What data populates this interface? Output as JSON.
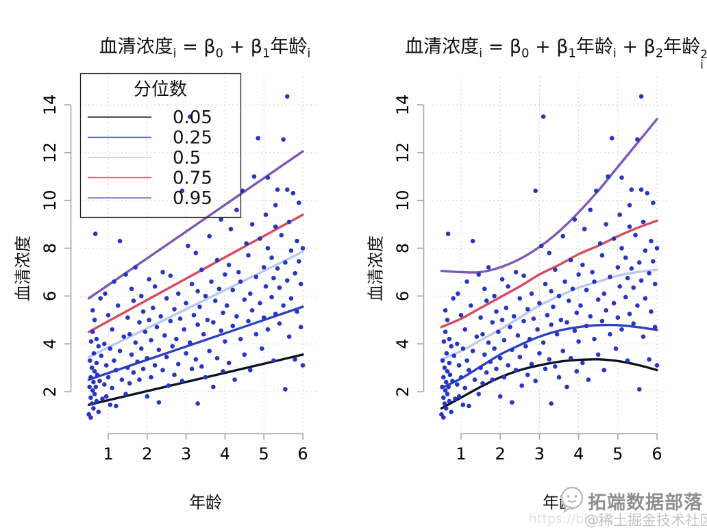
{
  "figure": {
    "background": "#ffffff",
    "watermark": {
      "brand": "拓端数据部落",
      "handle": "@稀土掘金技术社区",
      "url_fragment": "https://blog.c",
      "logo": "speech-bubble-face-logo"
    }
  },
  "colors": {
    "q05": "#0b1322",
    "q25": "#2a41c4",
    "q50": "#b8c8f0",
    "q75": "#d6495f",
    "q95": "#7f55b5",
    "points": "#2636c0",
    "grid": "#cdcdcd",
    "axis": "#a3a3a3",
    "tick_text": "#000000",
    "legend_border": "#222222"
  },
  "chart_data": [
    {
      "type": "scatter",
      "model": "linear quantile regression",
      "title_segments": [
        {
          "t": "血清浓度"
        },
        {
          "t": "i",
          "style": "sub"
        },
        {
          "t": " = β"
        },
        {
          "t": "0",
          "style": "sub"
        },
        {
          "t": " + β"
        },
        {
          "t": "1",
          "style": "sub"
        },
        {
          "t": "年龄"
        },
        {
          "t": "i",
          "style": "sub"
        }
      ],
      "xlabel": "年龄",
      "ylabel": "血清浓度",
      "x_ticks": [
        1,
        2,
        3,
        4,
        5,
        6
      ],
      "y_ticks": [
        2,
        4,
        6,
        8,
        10,
        12,
        14
      ],
      "xlim": [
        0.4,
        6.2
      ],
      "ylim": [
        0.5,
        14.8
      ],
      "grid": true,
      "legend": {
        "title": "分位数",
        "position": "top-left",
        "entries": [
          {
            "label": "0.05",
            "color": "#0b1322"
          },
          {
            "label": "0.25",
            "color": "#2a41c4"
          },
          {
            "label": "0.5",
            "color": "#b8c8f0"
          },
          {
            "label": "0.75",
            "color": "#d6495f"
          },
          {
            "label": "0.95",
            "color": "#7f55b5"
          }
        ]
      },
      "quantile_lines": [
        {
          "tau": 0.05,
          "color": "#0b1322",
          "x": [
            0.5,
            6
          ],
          "y": [
            1.45,
            3.55
          ]
        },
        {
          "tau": 0.25,
          "color": "#2a41c4",
          "x": [
            0.5,
            6
          ],
          "y": [
            2.5,
            5.55
          ]
        },
        {
          "tau": 0.5,
          "color": "#b8c8f0",
          "x": [
            0.5,
            6
          ],
          "y": [
            3.45,
            7.85
          ]
        },
        {
          "tau": 0.75,
          "color": "#d6495f",
          "x": [
            0.5,
            6
          ],
          "y": [
            4.5,
            9.4
          ]
        },
        {
          "tau": 0.95,
          "color": "#7f55b5",
          "x": [
            0.5,
            6
          ],
          "y": [
            5.9,
            12.05
          ]
        }
      ],
      "points_source": "scatter_points"
    },
    {
      "type": "scatter",
      "model": "quadratic quantile regression",
      "title_segments": [
        {
          "t": "血清浓度"
        },
        {
          "t": "i",
          "style": "sub"
        },
        {
          "t": " = β"
        },
        {
          "t": "0",
          "style": "sub"
        },
        {
          "t": " + β"
        },
        {
          "t": "1",
          "style": "sub"
        },
        {
          "t": "年龄"
        },
        {
          "t": "i",
          "style": "sub"
        },
        {
          "t": " + β"
        },
        {
          "t": "2",
          "style": "sub"
        },
        {
          "t": "年龄"
        },
        {
          "style": "stack",
          "sup": "2",
          "sub": "i"
        }
      ],
      "xlabel": "年龄",
      "ylabel": "血清浓度",
      "x_ticks": [
        1,
        2,
        3,
        4,
        5,
        6
      ],
      "y_ticks": [
        2,
        4,
        6,
        8,
        10,
        12,
        14
      ],
      "xlim": [
        0.4,
        6.2
      ],
      "ylim": [
        0.5,
        14.8
      ],
      "grid": true,
      "legend": null,
      "curve_x": [
        0.5,
        1,
        1.5,
        2,
        2.5,
        3,
        3.5,
        4,
        4.5,
        5,
        5.5,
        6
      ],
      "quantile_curves": [
        {
          "tau": 0.05,
          "color": "#0b1322",
          "y": [
            1.3,
            1.75,
            2.2,
            2.6,
            2.9,
            3.1,
            3.25,
            3.33,
            3.35,
            3.28,
            3.12,
            2.9
          ]
        },
        {
          "tau": 0.25,
          "color": "#2a41c4",
          "y": [
            2.15,
            2.55,
            3.05,
            3.55,
            3.95,
            4.3,
            4.55,
            4.7,
            4.78,
            4.78,
            4.7,
            4.58
          ]
        },
        {
          "tau": 0.5,
          "color": "#b8c8f0",
          "y": [
            3.35,
            3.7,
            4.15,
            4.6,
            5.1,
            5.6,
            6.0,
            6.35,
            6.6,
            6.85,
            7.0,
            7.1
          ]
        },
        {
          "tau": 0.75,
          "color": "#d6495f",
          "y": [
            4.7,
            5.05,
            5.5,
            5.95,
            6.4,
            6.9,
            7.3,
            7.75,
            8.1,
            8.5,
            8.85,
            9.15
          ]
        },
        {
          "tau": 0.95,
          "color": "#7f55b5",
          "y": [
            7.05,
            7.0,
            7.0,
            7.2,
            7.55,
            8.05,
            8.7,
            9.5,
            10.4,
            11.4,
            12.4,
            13.4
          ]
        }
      ],
      "points_source": "scatter_points"
    }
  ],
  "scatter_points": [
    [
      0.5,
      1.05
    ],
    [
      0.52,
      2.2
    ],
    [
      0.53,
      3.3
    ],
    [
      0.55,
      0.92
    ],
    [
      0.55,
      1.75
    ],
    [
      0.55,
      2.6
    ],
    [
      0.56,
      4.1
    ],
    [
      0.58,
      1.5
    ],
    [
      0.58,
      3.0
    ],
    [
      0.6,
      2.05
    ],
    [
      0.6,
      4.5
    ],
    [
      0.6,
      5.4
    ],
    [
      0.62,
      1.3
    ],
    [
      0.62,
      2.4
    ],
    [
      0.63,
      3.6
    ],
    [
      0.65,
      1.9
    ],
    [
      0.65,
      2.85
    ],
    [
      0.65,
      5.0
    ],
    [
      0.67,
      8.6
    ],
    [
      0.68,
      2.2
    ],
    [
      0.7,
      1.6
    ],
    [
      0.7,
      3.2
    ],
    [
      0.7,
      4.2
    ],
    [
      0.72,
      2.7
    ],
    [
      0.75,
      1.15
    ],
    [
      0.75,
      3.9
    ],
    [
      0.78,
      2.45
    ],
    [
      0.8,
      5.9
    ],
    [
      0.82,
      3.5
    ],
    [
      0.85,
      1.7
    ],
    [
      0.9,
      2.3
    ],
    [
      0.9,
      4.0
    ],
    [
      0.92,
      6.1
    ],
    [
      0.95,
      1.8
    ],
    [
      0.95,
      3.1
    ],
    [
      1.0,
      2.6
    ],
    [
      1.0,
      5.2
    ],
    [
      1.05,
      1.45
    ],
    [
      1.05,
      3.8
    ],
    [
      1.1,
      2.15
    ],
    [
      1.1,
      4.6
    ],
    [
      1.15,
      6.6
    ],
    [
      1.15,
      3.3
    ],
    [
      1.2,
      1.4
    ],
    [
      1.2,
      2.9
    ],
    [
      1.25,
      5.6
    ],
    [
      1.3,
      3.7
    ],
    [
      1.3,
      8.3
    ],
    [
      1.35,
      2.5
    ],
    [
      1.4,
      4.3
    ],
    [
      1.45,
      6.9
    ],
    [
      1.45,
      1.9
    ],
    [
      1.5,
      3.0
    ],
    [
      1.5,
      5.1
    ],
    [
      1.55,
      2.35
    ],
    [
      1.55,
      4.4
    ],
    [
      1.6,
      6.3
    ],
    [
      1.6,
      3.55
    ],
    [
      1.65,
      2.8
    ],
    [
      1.65,
      5.8
    ],
    [
      1.7,
      4.05
    ],
    [
      1.7,
      7.2
    ],
    [
      1.75,
      3.25
    ],
    [
      1.8,
      2.5
    ],
    [
      1.8,
      4.9
    ],
    [
      1.85,
      6.0
    ],
    [
      1.85,
      3.8
    ],
    [
      1.9,
      5.35
    ],
    [
      1.9,
      2.95
    ],
    [
      1.95,
      4.5
    ],
    [
      2.0,
      1.8
    ],
    [
      2.0,
      3.4
    ],
    [
      2.05,
      6.7
    ],
    [
      2.05,
      5.0
    ],
    [
      2.1,
      2.6
    ],
    [
      2.1,
      4.15
    ],
    [
      2.15,
      5.5
    ],
    [
      2.2,
      3.1
    ],
    [
      2.2,
      6.4
    ],
    [
      2.25,
      4.7
    ],
    [
      2.3,
      1.55
    ],
    [
      2.3,
      3.75
    ],
    [
      2.35,
      5.15
    ],
    [
      2.4,
      2.9
    ],
    [
      2.4,
      7.0
    ],
    [
      2.45,
      4.35
    ],
    [
      2.5,
      3.45
    ],
    [
      2.5,
      5.9
    ],
    [
      2.55,
      2.25
    ],
    [
      2.6,
      4.95
    ],
    [
      2.6,
      6.85
    ],
    [
      2.65,
      3.9
    ],
    [
      2.7,
      5.45
    ],
    [
      2.7,
      2.7
    ],
    [
      2.75,
      4.2
    ],
    [
      2.8,
      3.15
    ],
    [
      2.8,
      6.1
    ],
    [
      2.85,
      5.05
    ],
    [
      2.9,
      2.45
    ],
    [
      2.9,
      10.4
    ],
    [
      2.95,
      4.6
    ],
    [
      3.0,
      3.6
    ],
    [
      3.0,
      5.7
    ],
    [
      3.05,
      8.1
    ],
    [
      3.1,
      13.5
    ],
    [
      3.1,
      4.05
    ],
    [
      3.15,
      2.95
    ],
    [
      3.15,
      6.5
    ],
    [
      3.2,
      5.2
    ],
    [
      3.25,
      3.35
    ],
    [
      3.25,
      7.8
    ],
    [
      3.3,
      1.5
    ],
    [
      3.3,
      4.8
    ],
    [
      3.3,
      6.2
    ],
    [
      3.35,
      5.55
    ],
    [
      3.4,
      3.05
    ],
    [
      3.4,
      7.1
    ],
    [
      3.45,
      4.4
    ],
    [
      3.5,
      2.6
    ],
    [
      3.5,
      6.0
    ],
    [
      3.55,
      5.0
    ],
    [
      3.6,
      3.7
    ],
    [
      3.6,
      8.5
    ],
    [
      3.65,
      6.6
    ],
    [
      3.7,
      4.9
    ],
    [
      3.7,
      2.2
    ],
    [
      3.75,
      5.8
    ],
    [
      3.8,
      3.4
    ],
    [
      3.8,
      7.5
    ],
    [
      3.85,
      6.3
    ],
    [
      3.9,
      4.55
    ],
    [
      3.9,
      9.2
    ],
    [
      3.95,
      5.3
    ],
    [
      3.95,
      2.85
    ],
    [
      4.0,
      6.9
    ],
    [
      4.0,
      4.1
    ],
    [
      4.05,
      5.6
    ],
    [
      4.1,
      3.2
    ],
    [
      4.1,
      7.3
    ],
    [
      4.15,
      8.8
    ],
    [
      4.2,
      4.75
    ],
    [
      4.2,
      6.25
    ],
    [
      4.25,
      2.5
    ],
    [
      4.3,
      5.15
    ],
    [
      4.3,
      9.6
    ],
    [
      4.35,
      7.0
    ],
    [
      4.4,
      4.2
    ],
    [
      4.4,
      6.6
    ],
    [
      4.45,
      10.4
    ],
    [
      4.5,
      3.55
    ],
    [
      4.5,
      5.85
    ],
    [
      4.55,
      8.2
    ],
    [
      4.6,
      4.95
    ],
    [
      4.6,
      7.7
    ],
    [
      4.65,
      6.1
    ],
    [
      4.65,
      2.9
    ],
    [
      4.7,
      5.4
    ],
    [
      4.7,
      9.0
    ],
    [
      4.75,
      11.0
    ],
    [
      4.8,
      4.4
    ],
    [
      4.8,
      6.8
    ],
    [
      4.85,
      12.6
    ],
    [
      4.9,
      5.7
    ],
    [
      4.9,
      8.4
    ],
    [
      4.95,
      3.8
    ],
    [
      5.0,
      7.2
    ],
    [
      5.0,
      5.1
    ],
    [
      5.05,
      9.4
    ],
    [
      5.05,
      6.4
    ],
    [
      5.1,
      4.6
    ],
    [
      5.1,
      8.0
    ],
    [
      5.1,
      10.95
    ],
    [
      5.2,
      5.95
    ],
    [
      5.2,
      7.6
    ],
    [
      5.25,
      3.3
    ],
    [
      5.25,
      6.75
    ],
    [
      5.3,
      8.9
    ],
    [
      5.3,
      5.25
    ],
    [
      5.3,
      9.8
    ],
    [
      5.35,
      10.45
    ],
    [
      5.35,
      7.15
    ],
    [
      5.4,
      4.85
    ],
    [
      5.4,
      6.35
    ],
    [
      5.45,
      8.55
    ],
    [
      5.5,
      12.55
    ],
    [
      5.5,
      5.6
    ],
    [
      5.55,
      7.4
    ],
    [
      5.55,
      2.1
    ],
    [
      5.6,
      14.35
    ],
    [
      5.6,
      10.45
    ],
    [
      5.6,
      6.65
    ],
    [
      5.65,
      9.1
    ],
    [
      5.65,
      4.3
    ],
    [
      5.7,
      7.9
    ],
    [
      5.7,
      5.9
    ],
    [
      5.75,
      10.3
    ],
    [
      5.8,
      6.95
    ],
    [
      5.8,
      3.35
    ],
    [
      5.85,
      8.3
    ],
    [
      5.85,
      5.35
    ],
    [
      5.9,
      7.45
    ],
    [
      5.9,
      9.9
    ],
    [
      5.95,
      4.7
    ],
    [
      5.95,
      6.5
    ],
    [
      6.0,
      3.1
    ],
    [
      6.0,
      8.0
    ]
  ]
}
